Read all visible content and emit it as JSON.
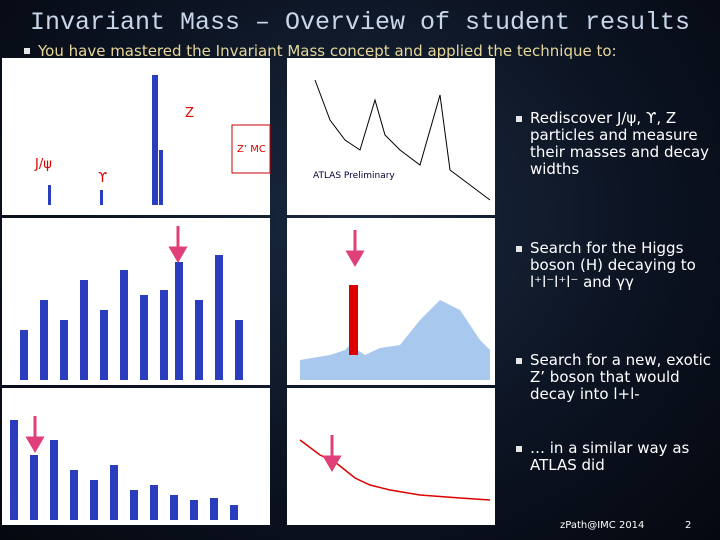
{
  "title": "Invariant Mass – Overview of student results",
  "subtitle": "You have mastered the Invariant Mass concept and applied the technique to:",
  "plot_labels": {
    "z": "Z",
    "jpsi": "J/ψ",
    "upsilon": "ϒ",
    "zprime": "Z’ MC",
    "atlas": "ATLAS Preliminary"
  },
  "bullets": [
    "Rediscover J/ψ, ϒ, Z particles and measure their masses and decay widths",
    "Search for the  Higgs boson (H) decaying to l⁺l⁻l⁺l⁻ and γγ",
    "Search for  a new, exotic Z’ boson that would decay into l+l-",
    "… in a similar way as ATLAS did"
  ],
  "footer": "zPath@IMC 2014",
  "page_number": "2"
}
